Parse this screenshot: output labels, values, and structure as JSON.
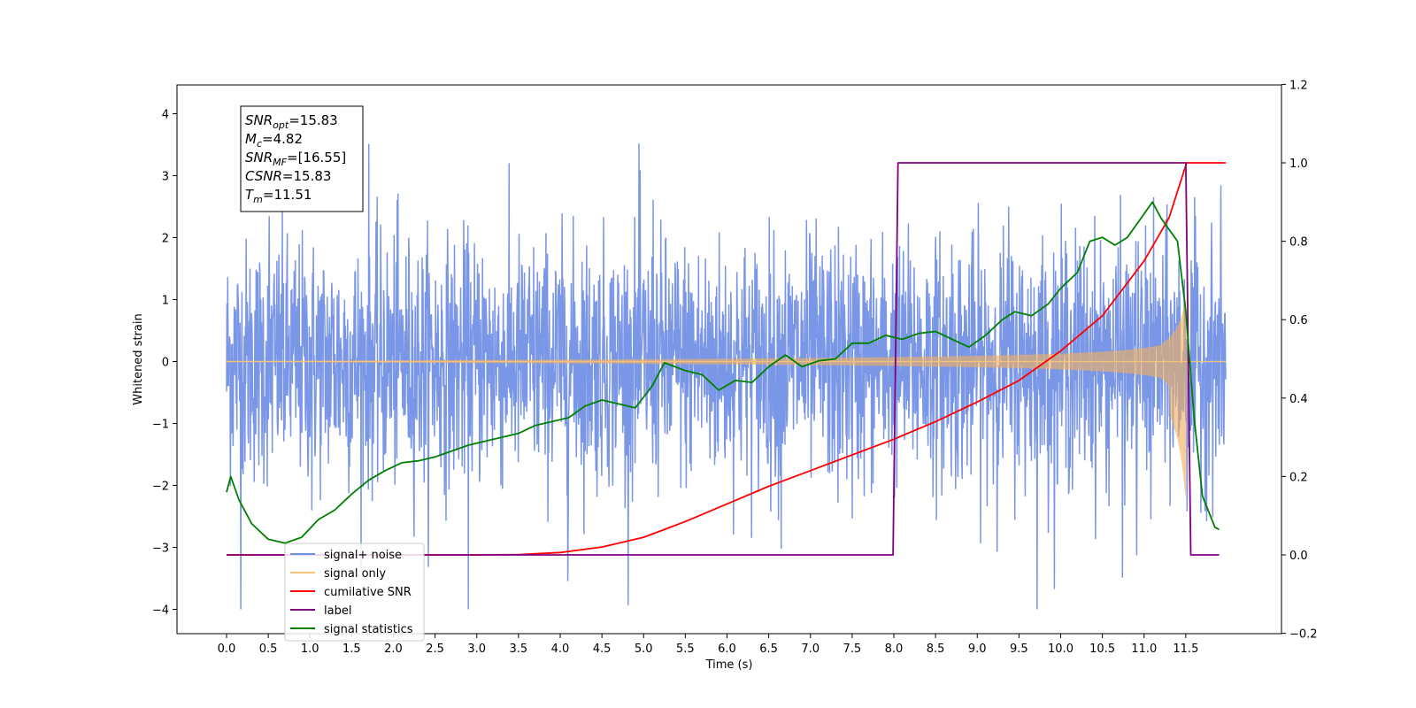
{
  "chart_data": {
    "type": "line",
    "title": "",
    "xlabel": "Time (s)",
    "ylabel": "Whitened strain",
    "xlim": [
      -0.6,
      12.6
    ],
    "ylim": [
      -4.4,
      4.5
    ],
    "y2lim": [
      -0.2,
      1.2
    ],
    "x_ticks": [
      "0.0",
      "0.5",
      "1.0",
      "1.5",
      "2.0",
      "2.5",
      "3.0",
      "3.5",
      "4.0",
      "4.5",
      "5.0",
      "5.5",
      "6.0",
      "6.5",
      "7.0",
      "7.5",
      "8.0",
      "8.5",
      "9.0",
      "9.5",
      "10.0",
      "10.5",
      "11.0",
      "11.5"
    ],
    "y_ticks": [
      "4",
      "3",
      "2",
      "1",
      "0",
      "−1",
      "−2",
      "−3",
      "−4"
    ],
    "y2_ticks": [
      "1.2",
      "1.0",
      "0.8",
      "0.6",
      "0.4",
      "0.2",
      "0.0",
      "−0.2"
    ],
    "grid": false,
    "legend_position": "lower-left",
    "annotation": [
      {
        "base": "SNR",
        "sub": "opt",
        "value": "=15.83"
      },
      {
        "base": "M",
        "sub": "c",
        "value": "=4.82"
      },
      {
        "base": "SNR",
        "sub": "MF",
        "value": "=[16.55]"
      },
      {
        "base": "CSNR",
        "sub": "",
        "value": "=15.83"
      },
      {
        "base": "T",
        "sub": "m",
        "value": "=11.51"
      }
    ],
    "series": [
      {
        "name": "signal+ noise",
        "color": "#7390e6",
        "axis": "left",
        "kind": "noise",
        "x_range": [
          0,
          11.98
        ],
        "amplitude": 0.85
      },
      {
        "name": "signal only",
        "color": "#f5c27a",
        "axis": "left",
        "kind": "chirp",
        "x_range": [
          0,
          11.98
        ],
        "peak_time": 11.51,
        "peak_amplitude": 1.0
      },
      {
        "name": "cumilative SNR",
        "color": "#ff0000",
        "axis": "right",
        "x": [
          0,
          3.0,
          3.5,
          4.0,
          4.5,
          5.0,
          5.5,
          6.0,
          6.5,
          7.0,
          7.5,
          8.0,
          8.5,
          9.0,
          9.5,
          10.0,
          10.5,
          11.0,
          11.3,
          11.51,
          11.98
        ],
        "y": [
          0,
          0,
          0.001,
          0.006,
          0.02,
          0.045,
          0.085,
          0.13,
          0.175,
          0.215,
          0.255,
          0.295,
          0.34,
          0.39,
          0.445,
          0.52,
          0.61,
          0.75,
          0.86,
          1.0,
          1.0
        ]
      },
      {
        "name": "label",
        "color": "#800080",
        "axis": "right",
        "x": [
          0,
          7.99,
          8.05,
          11.5,
          11.56,
          11.9
        ],
        "y": [
          0,
          0,
          1.0,
          1.0,
          0,
          0
        ]
      },
      {
        "name": "signal statistics",
        "color": "#008000",
        "axis": "right",
        "x": [
          0,
          0.05,
          0.15,
          0.3,
          0.5,
          0.7,
          0.9,
          1.1,
          1.3,
          1.5,
          1.7,
          1.9,
          2.1,
          2.3,
          2.5,
          2.7,
          2.9,
          3.1,
          3.3,
          3.5,
          3.7,
          3.9,
          4.1,
          4.3,
          4.5,
          4.7,
          4.9,
          5.1,
          5.25,
          5.5,
          5.7,
          5.9,
          6.1,
          6.3,
          6.5,
          6.7,
          6.9,
          7.1,
          7.3,
          7.5,
          7.7,
          7.9,
          8.1,
          8.3,
          8.5,
          8.7,
          8.9,
          9.1,
          9.3,
          9.45,
          9.65,
          9.85,
          10.0,
          10.2,
          10.35,
          10.5,
          10.65,
          10.8,
          11.0,
          11.1,
          11.2,
          11.3,
          11.4,
          11.5,
          11.6,
          11.7,
          11.85,
          11.9
        ],
        "y": [
          0.16,
          0.2,
          0.14,
          0.08,
          0.04,
          0.03,
          0.045,
          0.09,
          0.115,
          0.155,
          0.19,
          0.215,
          0.235,
          0.24,
          0.25,
          0.265,
          0.28,
          0.29,
          0.3,
          0.31,
          0.33,
          0.34,
          0.35,
          0.38,
          0.395,
          0.385,
          0.375,
          0.43,
          0.49,
          0.47,
          0.46,
          0.42,
          0.445,
          0.44,
          0.48,
          0.51,
          0.48,
          0.495,
          0.5,
          0.54,
          0.54,
          0.56,
          0.55,
          0.565,
          0.57,
          0.55,
          0.53,
          0.56,
          0.6,
          0.62,
          0.61,
          0.64,
          0.68,
          0.72,
          0.8,
          0.81,
          0.79,
          0.81,
          0.87,
          0.9,
          0.86,
          0.83,
          0.8,
          0.62,
          0.35,
          0.15,
          0.07,
          0.065
        ]
      }
    ]
  }
}
